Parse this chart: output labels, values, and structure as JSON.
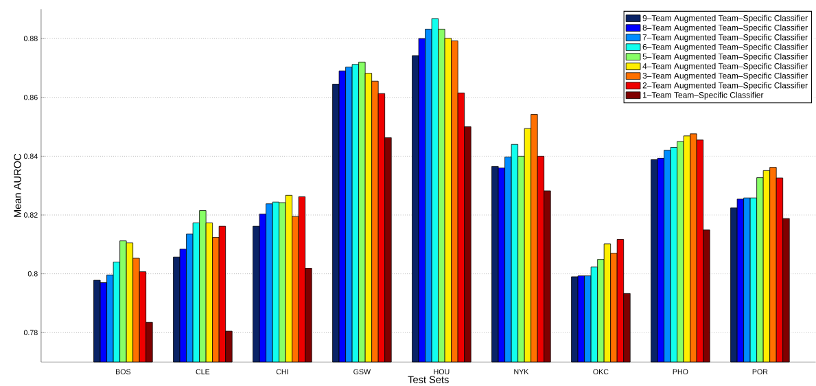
{
  "chart_data": {
    "type": "bar",
    "xlabel": "Test Sets",
    "ylabel": "Mean AUROC",
    "categories": [
      "BOS",
      "CLE",
      "CHI",
      "GSW",
      "HOU",
      "NYK",
      "OKC",
      "PHO",
      "POR"
    ],
    "series": [
      {
        "name": "9–Team Augmented Team–Specific Classifier",
        "color": "#0a2366",
        "values": [
          0.7978,
          0.8057,
          0.8162,
          0.8645,
          0.8742,
          0.8365,
          0.799,
          0.8388,
          0.8224
        ]
      },
      {
        "name": "8–Team Augmented Team–Specific Classifier",
        "color": "#0000ff",
        "values": [
          0.797,
          0.8084,
          0.8203,
          0.869,
          0.88,
          0.836,
          0.7993,
          0.8393,
          0.8254
        ]
      },
      {
        "name": "7–Team Augmented Team–Specific Classifier",
        "color": "#008cff",
        "values": [
          0.7996,
          0.8135,
          0.8238,
          0.8703,
          0.8832,
          0.8397,
          0.7993,
          0.842,
          0.8258
        ]
      },
      {
        "name": "6–Team Augmented Team–Specific Classifier",
        "color": "#11ffee",
        "values": [
          0.804,
          0.8173,
          0.8244,
          0.8712,
          0.8868,
          0.844,
          0.8023,
          0.843,
          0.8258
        ]
      },
      {
        "name": "5–Team Augmented Team–Specific Classifier",
        "color": "#88ff66",
        "values": [
          0.8112,
          0.8215,
          0.8242,
          0.872,
          0.8832,
          0.84,
          0.8049,
          0.845,
          0.8327
        ]
      },
      {
        "name": "4–Team Augmented Team–Specific Classifier",
        "color": "#ffee00",
        "values": [
          0.8105,
          0.8173,
          0.8267,
          0.8682,
          0.8801,
          0.8494,
          0.8102,
          0.8469,
          0.8351
        ]
      },
      {
        "name": "3–Team Augmented Team–Specific Classifier",
        "color": "#ff7000",
        "values": [
          0.8053,
          0.8124,
          0.8195,
          0.8655,
          0.8792,
          0.8542,
          0.807,
          0.8476,
          0.8362
        ]
      },
      {
        "name": "2–Team Augmented Team–Specific Classifier",
        "color": "#ee0000",
        "values": [
          0.8007,
          0.8162,
          0.8262,
          0.8613,
          0.8615,
          0.84,
          0.8117,
          0.8455,
          0.8326
        ]
      },
      {
        "name": "1–Team Team–Specific Classifier",
        "color": "#800000",
        "values": [
          0.7835,
          0.7805,
          0.8019,
          0.8463,
          0.85,
          0.8282,
          0.7933,
          0.8149,
          0.8188
        ]
      }
    ],
    "ylim": [
      0.77,
      0.89
    ],
    "yticks": [
      0.78,
      {
        "value": 0.8,
        "label": "0.8"
      },
      0.82,
      0.84,
      0.86,
      0.88
    ],
    "grid": "y",
    "legend": "top right"
  }
}
